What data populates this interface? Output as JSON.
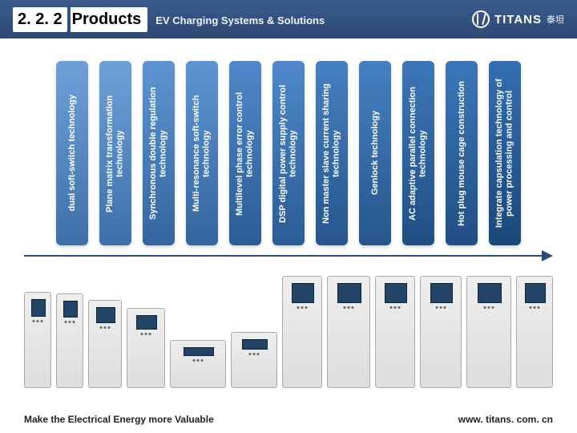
{
  "header": {
    "section_number": "2. 2. 2",
    "title": "Products",
    "subtitle": "EV Charging Systems & Solutions",
    "logo_text": "TITANS",
    "logo_cn": "泰坦"
  },
  "bars": [
    {
      "label": "dual soft-switch technology",
      "bg_top": "#6fa0d8",
      "bg_bot": "#3f6fa8"
    },
    {
      "label": "Plane matrix transformation technology",
      "bg_top": "#6fa0d8",
      "bg_bot": "#3f6fa8"
    },
    {
      "label": "Synchronous double regulation technology",
      "bg_top": "#5d95d2",
      "bg_bot": "#34659e"
    },
    {
      "label": "Multi-resonance soft-switch technology",
      "bg_top": "#5d95d2",
      "bg_bot": "#34659e"
    },
    {
      "label": "Multilevel phase error control technology",
      "bg_top": "#4f88c9",
      "bg_bot": "#2c5c94"
    },
    {
      "label": "DSP digital power supply control technology",
      "bg_top": "#4f88c9",
      "bg_bot": "#2c5c94"
    },
    {
      "label": "Non master slave current sharing technology",
      "bg_top": "#4680c1",
      "bg_bot": "#26568c"
    },
    {
      "label": "Genlock technology",
      "bg_top": "#4680c1",
      "bg_bot": "#26568c"
    },
    {
      "label": "AC adaptive parallel connection technology",
      "bg_top": "#3d77b8",
      "bg_bot": "#204f83"
    },
    {
      "label": "Hot plug mouse cage construction",
      "bg_top": "#3d77b8",
      "bg_bot": "#204f83"
    },
    {
      "label": "Integrate capsulation technology of power processing and control",
      "bg_top": "#346eb0",
      "bg_bot": "#1a487a"
    }
  ],
  "arrow_color": "#2d4a73",
  "products_count": 12,
  "footer": {
    "left": "Make the Electrical Energy more Valuable",
    "right": "www. titans. com. cn"
  }
}
